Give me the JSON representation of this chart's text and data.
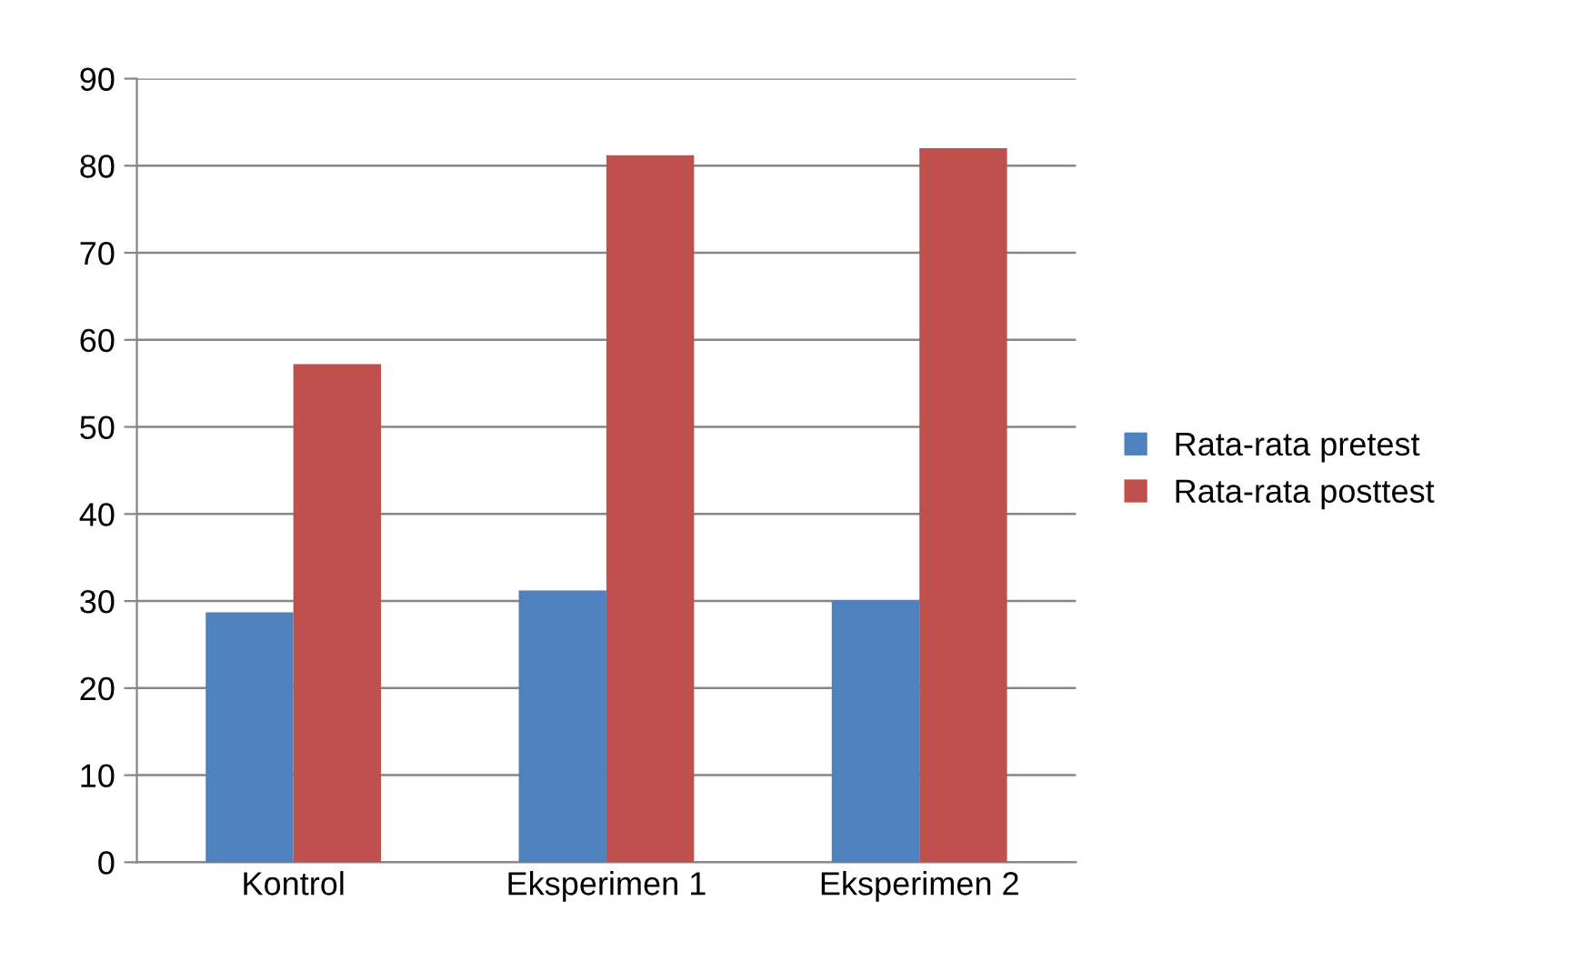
{
  "chart_data": {
    "type": "bar",
    "categories": [
      "Kontrol",
      "Eksperimen 1",
      "Eksperimen 2"
    ],
    "series": [
      {
        "name": "Rata-rata pretest",
        "color": "#4f81bd",
        "values": [
          28.7,
          31.2,
          30.1
        ]
      },
      {
        "name": "Rata-rata posttest",
        "color": "#c0504d",
        "values": [
          57.2,
          81.2,
          82.0
        ]
      }
    ],
    "ylim": [
      0,
      90
    ],
    "yticks": [
      0,
      10,
      20,
      30,
      40,
      50,
      60,
      70,
      80,
      90
    ],
    "grid": "y",
    "legend": "right"
  }
}
